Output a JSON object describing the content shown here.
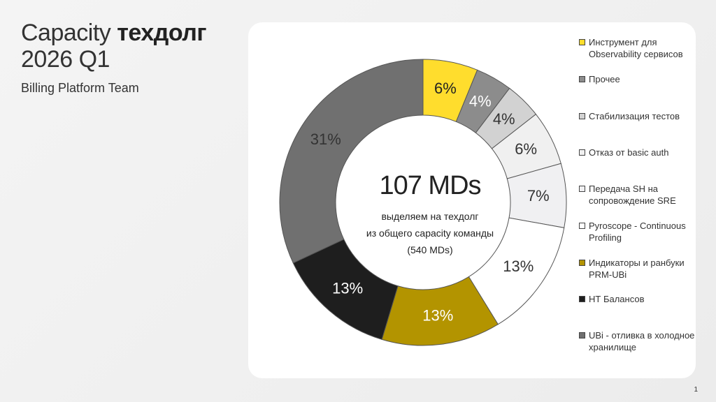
{
  "header": {
    "title_light": "Capacity",
    "title_bold": "техдолг",
    "title_line2": "2026 Q1",
    "subtitle": "Billing Platform Team"
  },
  "center": {
    "big": "107 MDs",
    "line1": "выделяем на техдолг",
    "line2": "из общего capacity команды",
    "line3": "(540 MDs)"
  },
  "page_number": "1",
  "chart_data": {
    "type": "pie",
    "donut": true,
    "categories": [
      "Инструмент для Observability сервисов",
      "Прочее",
      "Стабилизация тестов",
      "Отказ от basic auth",
      "Передача SH на сопровождение SRE",
      "Pyroscope - Continuous Profiling",
      "Индикаторы и ранбуки PRM-UBi",
      "НТ Балансов",
      "UBi - отливка в холодное хранилище"
    ],
    "values": [
      6,
      4,
      4,
      6,
      7,
      13,
      13,
      13,
      31
    ],
    "labels": [
      "6%",
      "4%",
      "4%",
      "6%",
      "7%",
      "13%",
      "13%",
      "13%",
      "31%"
    ],
    "colors": [
      "#ffdd2d",
      "#8c8c8c",
      "#d2d2d2",
      "#f0f0f0",
      "#f0f0f2",
      "#ffffff",
      "#b39400",
      "#1e1e1e",
      "#707070"
    ],
    "label_colors": [
      "#222222",
      "#ffffff",
      "#333333",
      "#333333",
      "#333333",
      "#333333",
      "#ffffff",
      "#ffffff",
      "#333333"
    ],
    "legend_placement": "right"
  }
}
